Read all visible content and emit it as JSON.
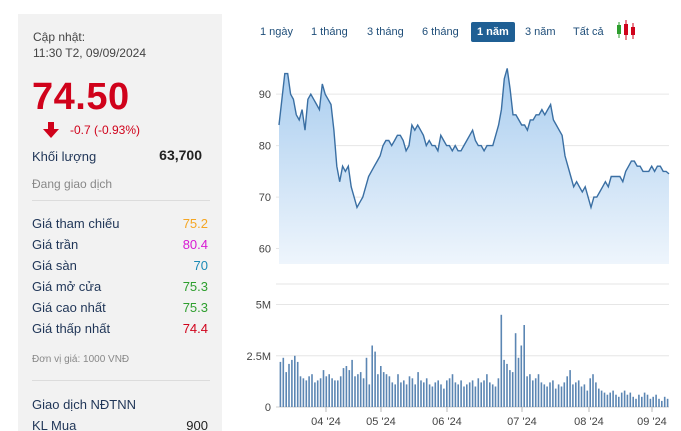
{
  "quote": {
    "updated_label": "Cập nhật:",
    "updated_time": "11:30 T2, 09/09/2024",
    "price": "74.50",
    "change": "-0.7 (-0.93%)",
    "volume_label": "Khối lượng",
    "volume_value": "63,700",
    "status": "Đang giao dịch"
  },
  "stats": [
    {
      "label": "Giá tham chiếu",
      "value": "75.2",
      "color": "#f5a623"
    },
    {
      "label": "Giá trần",
      "value": "80.4",
      "color": "#d81bd3"
    },
    {
      "label": "Giá sàn",
      "value": "70",
      "color": "#1b8ab5"
    },
    {
      "label": "Giá mở cửa",
      "value": "75.3",
      "color": "#2e9e2e"
    },
    {
      "label": "Giá cao nhất",
      "value": "75.3",
      "color": "#2e9e2e"
    },
    {
      "label": "Giá thấp nhất",
      "value": "74.4",
      "color": "#d0021b"
    }
  ],
  "unit_note": "Đơn vị giá: 1000 VNĐ",
  "foreign": {
    "title": "Giao dịch NĐTNN",
    "buy_label": "KL Mua",
    "buy_value": "900"
  },
  "ranges": [
    {
      "label": "1 ngày",
      "active": false
    },
    {
      "label": "1 tháng",
      "active": false
    },
    {
      "label": "3 tháng",
      "active": false
    },
    {
      "label": "6 tháng",
      "active": false
    },
    {
      "label": "1 năm",
      "active": true
    },
    {
      "label": "3 năm",
      "active": false
    },
    {
      "label": "Tất cả",
      "active": false
    }
  ],
  "candle_icon": "candlestick-chart-icon",
  "colors": {
    "price_down": "#d0021b",
    "area_fill_top": "#b8d7f2",
    "area_fill_bottom": "#eaf3fb",
    "line": "#3a6fa3",
    "volume_bar": "#5b86b3",
    "active_range": "#1f5f94"
  },
  "chart_data": [
    {
      "type": "area",
      "ylim": [
        57,
        98
      ],
      "y_ticks": [
        60,
        70,
        80,
        90
      ],
      "x_ticks": [
        "04 '24",
        "05 '24",
        "06 '24",
        "07 '24",
        "08 '24",
        "09 '24"
      ],
      "values": [
        84,
        89,
        94,
        94,
        90,
        89,
        86,
        85,
        87,
        83,
        89,
        90,
        89,
        88,
        87,
        92,
        90,
        89,
        88,
        83,
        76,
        73,
        76,
        75,
        76,
        72,
        70,
        68,
        69,
        70,
        72,
        74,
        75,
        76,
        77,
        78,
        80,
        81,
        81,
        80,
        81,
        82,
        82,
        81,
        79,
        80,
        84,
        83,
        84,
        83,
        82,
        80,
        81,
        80,
        80,
        79,
        82,
        81,
        80,
        80,
        79,
        80,
        79,
        79,
        80,
        81,
        82,
        83,
        81,
        80,
        80,
        79,
        80,
        80,
        80,
        82,
        84,
        87,
        93,
        95,
        91,
        86,
        86,
        85,
        84,
        84,
        83,
        85,
        85,
        86,
        86,
        87,
        86,
        87,
        88,
        85,
        84,
        83,
        82,
        78,
        76,
        74,
        72,
        73,
        72,
        71,
        72,
        70,
        68,
        70,
        70,
        71,
        72,
        73,
        72,
        74,
        74,
        74,
        74,
        73,
        75,
        76,
        77,
        77,
        76,
        76,
        75,
        75,
        75,
        76,
        75,
        76,
        76,
        75,
        75,
        74.5
      ]
    },
    {
      "type": "bar",
      "ylim": [
        0,
        6
      ],
      "y_ticks": [
        {
          "v": 0,
          "label": "0"
        },
        {
          "v": 2.5,
          "label": "2.5M"
        },
        {
          "v": 5,
          "label": "5M"
        }
      ],
      "values": [
        2.2,
        2.4,
        1.7,
        2.1,
        2.3,
        2.5,
        2.2,
        1.5,
        1.4,
        1.3,
        1.5,
        1.6,
        1.2,
        1.3,
        1.4,
        1.8,
        1.5,
        1.6,
        1.4,
        1.3,
        1.3,
        1.5,
        1.9,
        2.0,
        1.8,
        2.3,
        1.5,
        1.6,
        1.7,
        1.4,
        2.4,
        1.1,
        3.0,
        2.7,
        1.6,
        2.0,
        1.7,
        1.6,
        1.5,
        1.2,
        1.1,
        1.6,
        1.2,
        1.3,
        1.1,
        1.5,
        1.4,
        1.1,
        1.7,
        1.3,
        1.2,
        1.4,
        1.1,
        1.0,
        1.2,
        1.3,
        1.1,
        0.9,
        1.3,
        1.4,
        1.6,
        1.2,
        1.1,
        1.3,
        1.0,
        1.1,
        1.2,
        1.3,
        1.0,
        1.4,
        1.2,
        1.3,
        1.6,
        1.2,
        1.1,
        1.0,
        1.4,
        4.5,
        2.3,
        2.1,
        1.8,
        1.7,
        3.6,
        2.4,
        3.0,
        4.0,
        1.5,
        1.6,
        1.3,
        1.4,
        1.6,
        1.2,
        1.1,
        1.0,
        1.2,
        1.3,
        0.9,
        1.1,
        1.0,
        1.2,
        1.5,
        1.8,
        1.1,
        1.2,
        1.3,
        1.0,
        1.1,
        0.8,
        1.4,
        1.6,
        1.2,
        0.9,
        0.8,
        0.7,
        0.6,
        0.7,
        0.8,
        0.6,
        0.5,
        0.7,
        0.8,
        0.6,
        0.7,
        0.5,
        0.4,
        0.6,
        0.5,
        0.7,
        0.6,
        0.4,
        0.5,
        0.6,
        0.4,
        0.3,
        0.5,
        0.4
      ]
    }
  ]
}
